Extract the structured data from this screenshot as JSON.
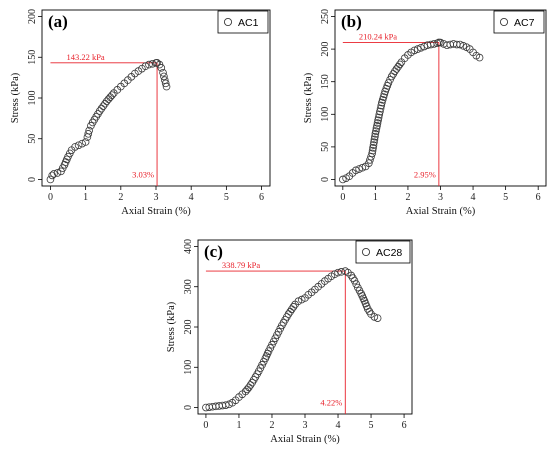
{
  "figure": {
    "colors": {
      "annotation": "#e8202a",
      "marker": "#3a3a3a",
      "axis": "#000000"
    },
    "marker_icon": "hollow-circle"
  },
  "chart_data": [
    {
      "type": "scatter",
      "panel_label": "(a)",
      "legend": "AC1",
      "legend_position": "top-right",
      "xlabel": "Axial Strain (%)",
      "ylabel": "Stress (kPa)",
      "xlim": [
        0,
        6
      ],
      "ylim": [
        0,
        200
      ],
      "xticks": [
        0,
        1,
        2,
        3,
        4,
        5,
        6
      ],
      "yticks": [
        0,
        50,
        100,
        150,
        200
      ],
      "grid": false,
      "peak": {
        "x": 3.03,
        "y": 143.22,
        "stress_label": "143.22 kPa",
        "strain_label": "3.03%"
      },
      "x": [
        0.0,
        0.05,
        0.1,
        0.2,
        0.3,
        0.4,
        0.5,
        0.6,
        0.7,
        0.8,
        0.9,
        1.0,
        1.05,
        1.1,
        1.15,
        1.2,
        1.3,
        1.4,
        1.5,
        1.6,
        1.7,
        1.8,
        1.9,
        2.0,
        2.1,
        2.2,
        2.3,
        2.4,
        2.5,
        2.6,
        2.7,
        2.8,
        2.9,
        3.0,
        3.03,
        3.1,
        3.15,
        3.2,
        3.25,
        3.3
      ],
      "y": [
        0,
        5,
        7,
        8,
        10,
        18,
        28,
        36,
        40,
        42,
        44,
        46,
        52,
        60,
        66,
        70,
        77,
        84,
        90,
        96,
        101,
        106,
        110,
        114,
        118,
        122,
        126,
        130,
        133,
        136,
        139,
        141,
        142,
        143,
        143.22,
        141,
        137,
        131,
        122,
        114
      ]
    },
    {
      "type": "scatter",
      "panel_label": "(b)",
      "legend": "AC7",
      "legend_position": "top-right",
      "xlabel": "Axial Strain (%)",
      "ylabel": "Stress (kPa)",
      "xlim": [
        0,
        6
      ],
      "ylim": [
        0,
        250
      ],
      "xticks": [
        0,
        1,
        2,
        3,
        4,
        5,
        6
      ],
      "yticks": [
        0,
        50,
        100,
        150,
        200,
        250
      ],
      "grid": false,
      "peak": {
        "x": 2.95,
        "y": 210.24,
        "stress_label": "210.24 kPa",
        "strain_label": "2.95%"
      },
      "x": [
        0.0,
        0.1,
        0.2,
        0.3,
        0.4,
        0.5,
        0.6,
        0.7,
        0.8,
        0.9,
        1.0,
        1.1,
        1.2,
        1.3,
        1.4,
        1.5,
        1.6,
        1.7,
        1.8,
        1.9,
        2.0,
        2.1,
        2.2,
        2.3,
        2.4,
        2.5,
        2.6,
        2.7,
        2.8,
        2.9,
        2.95,
        3.0,
        3.1,
        3.2,
        3.3,
        3.4,
        3.5,
        3.6,
        3.7,
        3.8,
        3.9,
        4.0,
        4.1,
        4.2
      ],
      "y": [
        0,
        2,
        5,
        10,
        14,
        16,
        18,
        20,
        25,
        40,
        70,
        95,
        118,
        135,
        148,
        158,
        166,
        173,
        180,
        186,
        191,
        195,
        198,
        200,
        202,
        204,
        206,
        207,
        208,
        209,
        210.24,
        210,
        208,
        206,
        207,
        208,
        207,
        207,
        205,
        203,
        200,
        195,
        190,
        187
      ]
    },
    {
      "type": "scatter",
      "panel_label": "(c)",
      "legend": "AC28",
      "legend_position": "top-right",
      "xlabel": "Axial Strain (%)",
      "ylabel": "Stress (kPa)",
      "xlim": [
        0,
        6
      ],
      "ylim": [
        0,
        400
      ],
      "xticks": [
        0,
        1,
        2,
        3,
        4,
        5,
        6
      ],
      "yticks": [
        0,
        100,
        200,
        300,
        400
      ],
      "grid": false,
      "peak": {
        "x": 4.22,
        "y": 338.79,
        "stress_label": "338.79 kPa",
        "strain_label": "4.22%"
      },
      "x": [
        0.0,
        0.1,
        0.2,
        0.3,
        0.4,
        0.5,
        0.6,
        0.7,
        0.8,
        0.9,
        1.0,
        1.1,
        1.2,
        1.3,
        1.4,
        1.5,
        1.6,
        1.7,
        1.8,
        1.9,
        2.0,
        2.1,
        2.2,
        2.3,
        2.4,
        2.5,
        2.6,
        2.7,
        2.8,
        2.9,
        3.0,
        3.1,
        3.2,
        3.3,
        3.4,
        3.5,
        3.6,
        3.7,
        3.8,
        3.9,
        4.0,
        4.1,
        4.22,
        4.3,
        4.4,
        4.5,
        4.6,
        4.7,
        4.8,
        4.9,
        5.0,
        5.1,
        5.2
      ],
      "y": [
        0,
        1,
        2,
        3,
        4,
        5,
        6,
        8,
        12,
        18,
        26,
        33,
        40,
        50,
        62,
        76,
        90,
        106,
        122,
        140,
        156,
        172,
        188,
        204,
        218,
        232,
        244,
        256,
        264,
        268,
        272,
        280,
        286,
        293,
        300,
        307,
        314,
        320,
        326,
        331,
        335,
        337,
        338.79,
        335,
        328,
        315,
        298,
        283,
        265,
        245,
        232,
        225,
        222
      ]
    }
  ]
}
